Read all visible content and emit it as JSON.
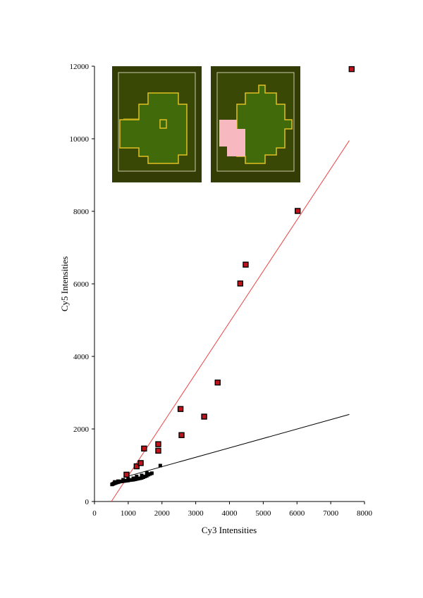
{
  "chart_data": {
    "type": "scatter",
    "xlabel": "Cy3 Intensities",
    "ylabel": "Cy5 Intensities",
    "xlim": [
      0,
      8000
    ],
    "ylim": [
      0,
      12000
    ],
    "xticks": [
      "0",
      "1000",
      "2000",
      "3000",
      "4000",
      "5000",
      "6000",
      "7000",
      "8000"
    ],
    "yticks": [
      "0",
      "2000",
      "4000",
      "6000",
      "8000",
      "10000",
      "12000"
    ],
    "grid": false,
    "legend": "none",
    "series": [
      {
        "marker": "black square",
        "color": "#000000",
        "points": [
          [
            520,
            470
          ],
          [
            540,
            480
          ],
          [
            560,
            490
          ],
          [
            580,
            500
          ],
          [
            600,
            505
          ],
          [
            620,
            510
          ],
          [
            640,
            520
          ],
          [
            660,
            525
          ],
          [
            690,
            530
          ],
          [
            720,
            540
          ],
          [
            760,
            550
          ],
          [
            800,
            555
          ],
          [
            840,
            560
          ],
          [
            880,
            565
          ],
          [
            920,
            570
          ],
          [
            960,
            575
          ],
          [
            1000,
            580
          ],
          [
            1050,
            590
          ],
          [
            1100,
            595
          ],
          [
            1150,
            600
          ],
          [
            1200,
            610
          ],
          [
            1250,
            620
          ],
          [
            1300,
            630
          ],
          [
            1350,
            640
          ],
          [
            1400,
            650
          ],
          [
            1450,
            670
          ],
          [
            1500,
            690
          ],
          [
            1550,
            710
          ],
          [
            1600,
            740
          ],
          [
            1650,
            760
          ],
          [
            1700,
            780
          ],
          [
            1250,
            690
          ],
          [
            1400,
            720
          ],
          [
            1550,
            790
          ],
          [
            1950,
            990
          ],
          [
            600,
            540
          ],
          [
            700,
            560
          ],
          [
            850,
            600
          ],
          [
            1000,
            620
          ],
          [
            1150,
            640
          ]
        ]
      },
      {
        "marker": "red square with black outline",
        "color": "#c0141c",
        "points": [
          [
            950,
            740
          ],
          [
            1250,
            970
          ],
          [
            1370,
            1060
          ],
          [
            1470,
            1460
          ],
          [
            1890,
            1580
          ],
          [
            1890,
            1400
          ],
          [
            2550,
            2550
          ],
          [
            2580,
            1830
          ],
          [
            3250,
            2340
          ],
          [
            3650,
            3280
          ],
          [
            4320,
            6010
          ],
          [
            4480,
            6530
          ],
          [
            6020,
            8010
          ],
          [
            7620,
            11920
          ]
        ]
      }
    ],
    "lines": [
      {
        "color": "#ee4444",
        "from": [
          500,
          0
        ],
        "to": [
          7550,
          9950
        ]
      },
      {
        "color": "#000000",
        "from": [
          1000,
          700
        ],
        "to": [
          7550,
          2400
        ]
      }
    ],
    "insets": [
      {
        "description": "spot image, yellow bleed at left"
      },
      {
        "description": "segmented spot, pink mask at left"
      }
    ]
  }
}
